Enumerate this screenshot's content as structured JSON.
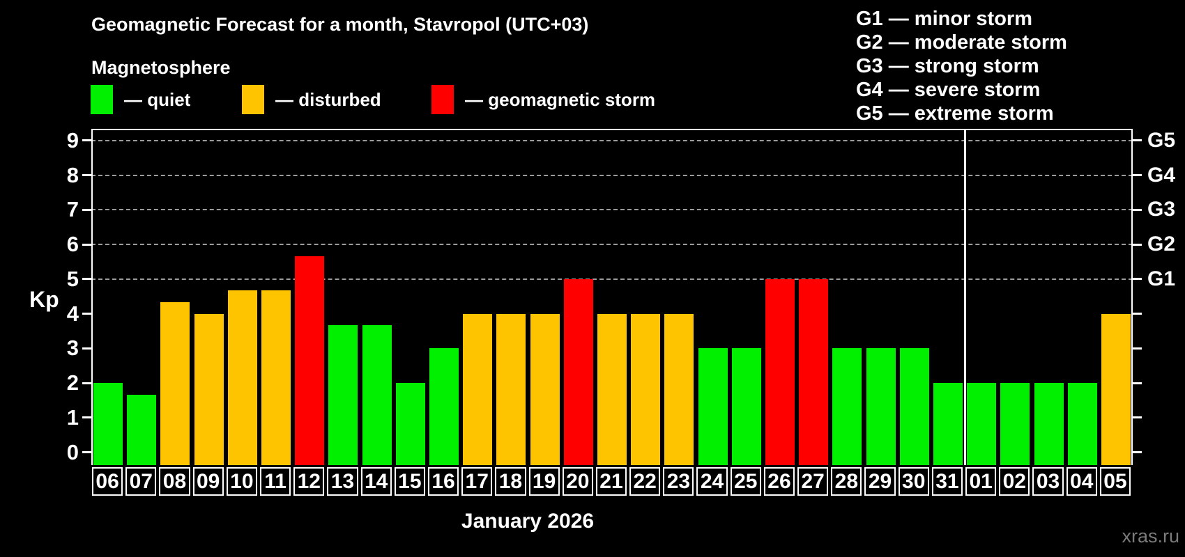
{
  "title": "Geomagnetic Forecast for a month, Stavropol (UTC+03)",
  "subtitle": "Magnetosphere",
  "legend": {
    "items": [
      {
        "label": "— quiet",
        "color": "#00f000"
      },
      {
        "label": "— disturbed",
        "color": "#ffc400"
      },
      {
        "label": "— geomagnetic storm",
        "color": "#ff0000"
      }
    ]
  },
  "storm_scale_legend": [
    "G1 — minor storm",
    "G2 — moderate storm",
    "G3 — strong storm",
    "G4 — severe storm",
    "G5 — extreme storm"
  ],
  "chart_data": {
    "type": "bar",
    "ylabel": "Kp",
    "xlabel": "January 2026",
    "ylim": [
      0,
      9
    ],
    "yticks": [
      0,
      1,
      2,
      3,
      4,
      5,
      6,
      7,
      8,
      9
    ],
    "gridlines_at": [
      5,
      6,
      7,
      8,
      9
    ],
    "grid": "dashed, horizontal only at storm levels",
    "legend_position": "top",
    "right_axis_labels": [
      {
        "kp": 5,
        "label": "G1"
      },
      {
        "kp": 6,
        "label": "G2"
      },
      {
        "kp": 7,
        "label": "G3"
      },
      {
        "kp": 8,
        "label": "G4"
      },
      {
        "kp": 9,
        "label": "G5"
      }
    ],
    "categories": [
      "06",
      "07",
      "08",
      "09",
      "10",
      "11",
      "12",
      "13",
      "14",
      "15",
      "16",
      "17",
      "18",
      "19",
      "20",
      "21",
      "22",
      "23",
      "24",
      "25",
      "26",
      "27",
      "28",
      "29",
      "30",
      "31",
      "01",
      "02",
      "03",
      "04",
      "05"
    ],
    "values": [
      2,
      1.67,
      4.33,
      4,
      4.67,
      4.67,
      5.67,
      3.67,
      3.67,
      2,
      3,
      4,
      4,
      4,
      5,
      4,
      4,
      4,
      3,
      3,
      5,
      5,
      3,
      3,
      3,
      2,
      2,
      2,
      2,
      2,
      4
    ],
    "states": [
      "quiet",
      "quiet",
      "disturbed",
      "disturbed",
      "disturbed",
      "disturbed",
      "storm",
      "quiet",
      "quiet",
      "quiet",
      "quiet",
      "disturbed",
      "disturbed",
      "disturbed",
      "storm",
      "disturbed",
      "disturbed",
      "disturbed",
      "quiet",
      "quiet",
      "storm",
      "storm",
      "quiet",
      "quiet",
      "quiet",
      "quiet",
      "quiet",
      "quiet",
      "quiet",
      "quiet",
      "disturbed"
    ],
    "state_colors": {
      "quiet": "#00f000",
      "disturbed": "#ffc400",
      "storm": "#ff0000"
    },
    "month_separator_after_index": 25
  },
  "watermark": "xras.ru"
}
